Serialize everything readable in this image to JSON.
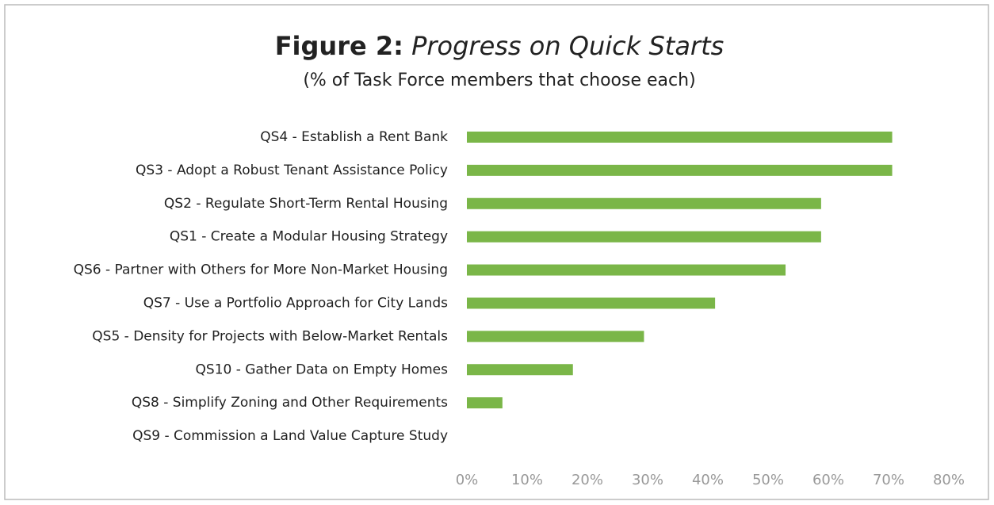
{
  "chart_data": {
    "type": "bar",
    "orientation": "horizontal",
    "title_prefix": "Figure 2:",
    "title": "Progress on Quick Starts",
    "subtitle": "(% of Task Force members that choose each)",
    "categories": [
      "QS4 - Establish a Rent Bank",
      "QS3 - Adopt a Robust Tenant Assistance Policy",
      "QS2 - Regulate Short-Term Rental Housing",
      "QS1 - Create a Modular Housing Strategy",
      "QS6 - Partner with Others for More Non-Market Housing",
      "QS7 - Use a Portfolio Approach for City Lands",
      "QS5 - Density for Projects with Below-Market Rentals",
      "QS10 - Gather Data on Empty Homes",
      "QS8 - Simplify Zoning and Other Requirements",
      "QS9 - Commission a Land Value Capture Study"
    ],
    "values": [
      70.6,
      70.6,
      58.8,
      58.8,
      52.9,
      41.2,
      29.4,
      17.6,
      5.9,
      0
    ],
    "color": "#7ab648",
    "xlim": [
      0,
      80
    ],
    "xticks": [
      {
        "value": 0,
        "label": "0%"
      },
      {
        "value": 10,
        "label": "10%"
      },
      {
        "value": 20,
        "label": "20%"
      },
      {
        "value": 30,
        "label": "30%"
      },
      {
        "value": 40,
        "label": "40%"
      },
      {
        "value": 50,
        "label": "50%"
      },
      {
        "value": 60,
        "label": "60%"
      },
      {
        "value": 70,
        "label": "70%"
      },
      {
        "value": 80,
        "label": "80%"
      }
    ],
    "grid": false
  }
}
